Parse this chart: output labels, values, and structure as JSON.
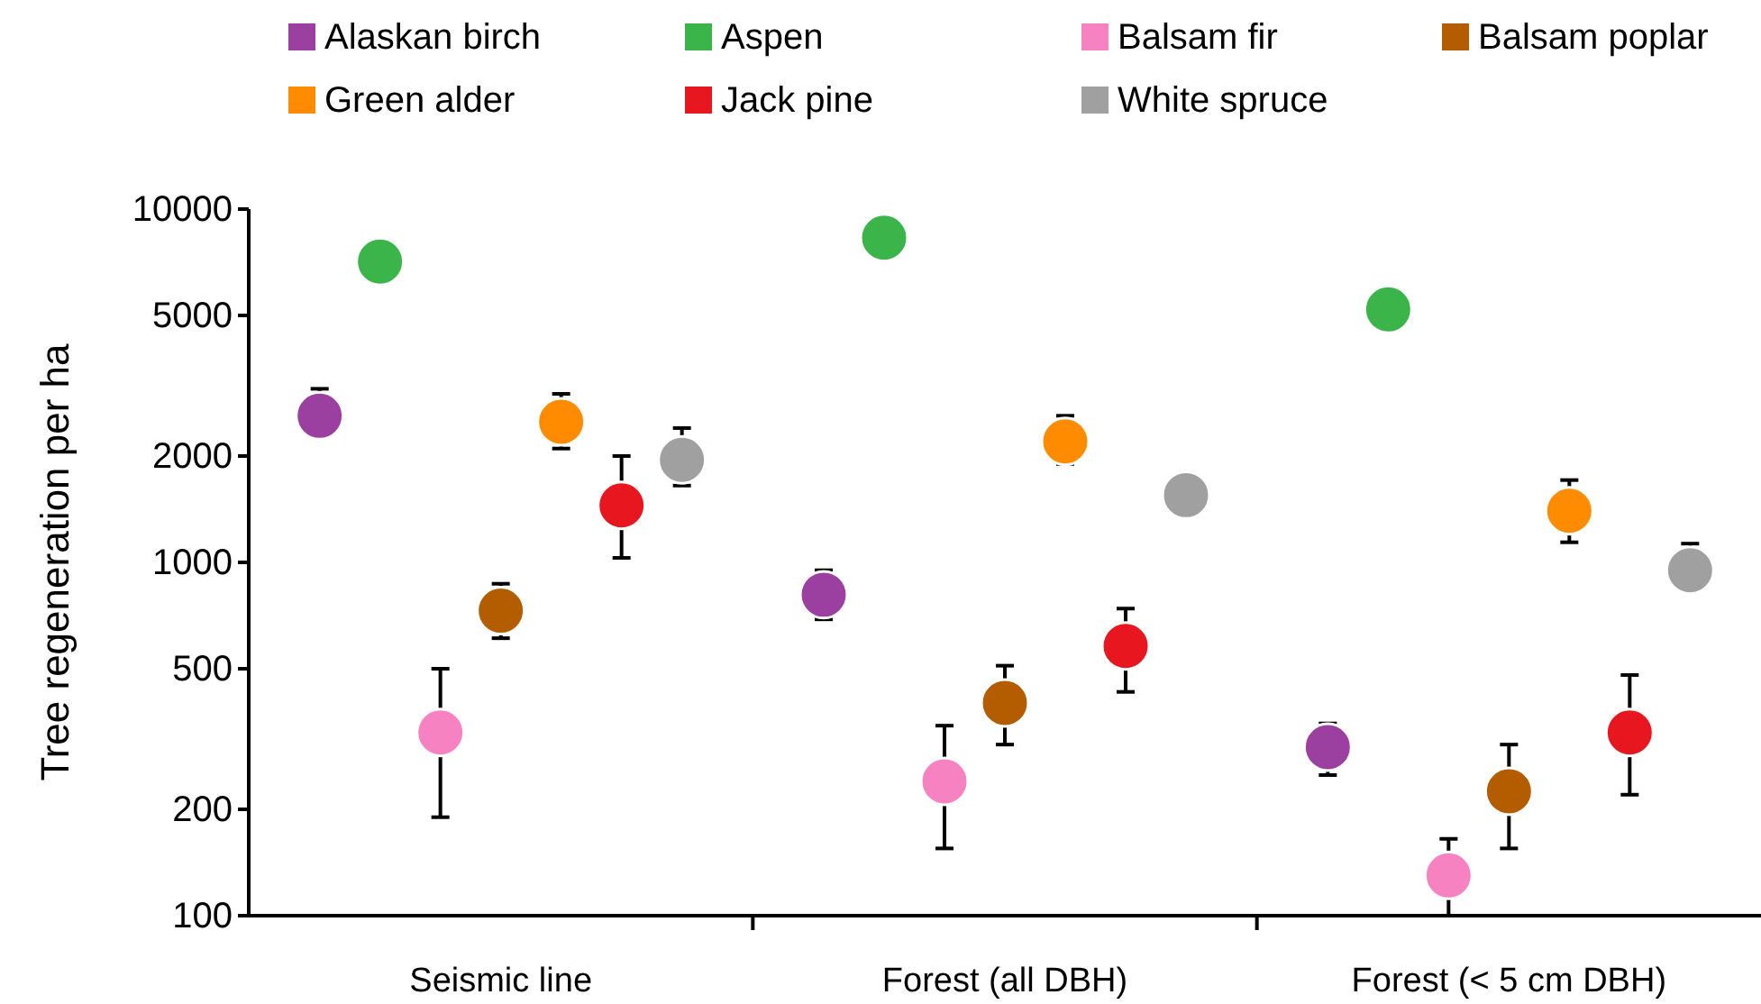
{
  "chart_data": {
    "type": "scatter",
    "ylabel": "Tree regeneration per ha",
    "categories": [
      "Seismic line",
      "Forest (all DBH)",
      "Forest (< 5 cm DBH)"
    ],
    "log": "y",
    "ylim": [
      100,
      10000
    ],
    "yticks": [
      100,
      200,
      500,
      1000,
      2000,
      5000,
      10000
    ],
    "legend": "top",
    "marker": "circle",
    "grid": false,
    "series": [
      {
        "name": "Alaskan birch",
        "color": "#9b3fa0",
        "values": [
          2600,
          810,
          300
        ],
        "errors": [
          [
            2290,
            3100
          ],
          [
            690,
            950
          ],
          [
            250,
            350
          ]
        ]
      },
      {
        "name": "Aspen",
        "color": "#3bb54a",
        "values": [
          7100,
          8300,
          5200
        ],
        "errors": [
          null,
          null,
          null
        ]
      },
      {
        "name": "Balsam fir",
        "color": "#f782c2",
        "values": [
          330,
          240,
          130
        ],
        "errors": [
          [
            190,
            500
          ],
          [
            155,
            345
          ],
          [
            100,
            165
          ]
        ]
      },
      {
        "name": "Balsam poplar",
        "color": "#b35c00",
        "values": [
          730,
          400,
          225
        ],
        "errors": [
          [
            610,
            870
          ],
          [
            305,
            510
          ],
          [
            155,
            305
          ]
        ]
      },
      {
        "name": "Green alder",
        "color": "#ff8c00",
        "values": [
          2500,
          2200,
          1400
        ],
        "errors": [
          [
            2100,
            3000
          ],
          [
            1900,
            2600
          ],
          [
            1140,
            1710
          ]
        ]
      },
      {
        "name": "Jack pine",
        "color": "#e8161f",
        "values": [
          1450,
          580,
          330
        ],
        "errors": [
          [
            1030,
            2000
          ],
          [
            430,
            740
          ],
          [
            220,
            480
          ]
        ]
      },
      {
        "name": "White spruce",
        "color": "#a0a0a0",
        "values": [
          1950,
          1550,
          950
        ],
        "errors": [
          [
            1650,
            2400
          ],
          null,
          [
            830,
            1130
          ]
        ]
      }
    ]
  }
}
